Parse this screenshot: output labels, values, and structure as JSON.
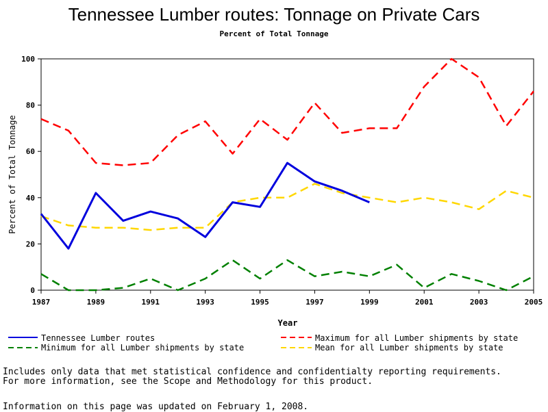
{
  "chart_data": {
    "type": "line",
    "title": "Tennessee Lumber routes: Tonnage on Private Cars",
    "subtitle": "Percent of Total Tonnage",
    "xlabel": "Year",
    "ylabel": "Percent of Total Tonnage",
    "xlim": [
      1987,
      2005
    ],
    "ylim": [
      0,
      100
    ],
    "x_ticks": [
      1987,
      1989,
      1991,
      1993,
      1995,
      1997,
      1999,
      2001,
      2003,
      2005
    ],
    "y_ticks": [
      0,
      20,
      40,
      60,
      80,
      100
    ],
    "grid": false,
    "legend_position": "bottom",
    "series": [
      {
        "name": "Tennessee Lumber routes",
        "color": "#0000dd",
        "style": "solid",
        "x": [
          1987,
          1988,
          1989,
          1990,
          1991,
          1992,
          1993,
          1994,
          1995,
          1996,
          1997,
          1998,
          1999
        ],
        "values": [
          33,
          18,
          42,
          30,
          34,
          31,
          23,
          38,
          36,
          55,
          47,
          43,
          38
        ]
      },
      {
        "name": "Maximum for all Lumber shipments by state",
        "color": "#ff0000",
        "style": "dashed",
        "x": [
          1987,
          1988,
          1989,
          1990,
          1991,
          1992,
          1993,
          1994,
          1995,
          1996,
          1997,
          1998,
          1999,
          2000,
          2001,
          2002,
          2003,
          2004,
          2005
        ],
        "values": [
          74,
          69,
          55,
          54,
          55,
          67,
          73,
          59,
          74,
          65,
          81,
          68,
          70,
          70,
          88,
          100,
          92,
          71,
          86
        ]
      },
      {
        "name": "Minimum for all Lumber shipments by state",
        "color": "#008000",
        "style": "dashed",
        "x": [
          1987,
          1988,
          1989,
          1990,
          1991,
          1992,
          1993,
          1994,
          1995,
          1996,
          1997,
          1998,
          1999,
          2000,
          2001,
          2002,
          2003,
          2004,
          2005
        ],
        "values": [
          7,
          0,
          0,
          1,
          5,
          0,
          5,
          13,
          5,
          13,
          6,
          8,
          6,
          11,
          1,
          7,
          4,
          0,
          6
        ]
      },
      {
        "name": "Mean for all Lumber shipments by state",
        "color": "#ffd700",
        "style": "dashed",
        "x": [
          1987,
          1988,
          1989,
          1990,
          1991,
          1992,
          1993,
          1994,
          1995,
          1996,
          1997,
          1998,
          1999,
          2000,
          2001,
          2002,
          2003,
          2004,
          2005
        ],
        "values": [
          32,
          28,
          27,
          27,
          26,
          27,
          27,
          38,
          40,
          40,
          46,
          42,
          40,
          38,
          40,
          38,
          35,
          43,
          40
        ]
      }
    ]
  },
  "notes": {
    "line1": "Includes only data that met statistical confidence and confidentialty reporting requirements.",
    "line2": "For more information, see the Scope and Methodology for this product.",
    "updated": "Information on this page was updated on February 1, 2008."
  }
}
